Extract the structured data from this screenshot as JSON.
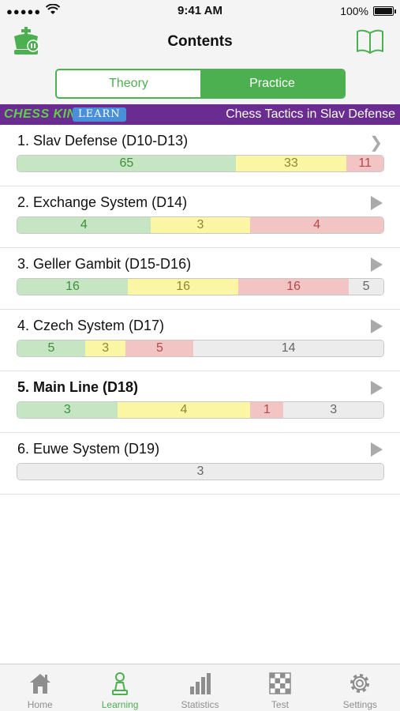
{
  "status_bar": {
    "signal": "●●●●●",
    "time": "9:41 AM",
    "battery": "100%"
  },
  "nav": {
    "title": "Contents"
  },
  "segments": {
    "theory": "Theory",
    "practice": "Practice"
  },
  "banner": {
    "brand": "CHESS KING",
    "badge": "LEARN",
    "course": "Chess Tactics in Slav Defense"
  },
  "chapters": [
    {
      "title": "1. Slav Defense (D10-D13)",
      "values": [
        65,
        33,
        11,
        0
      ]
    },
    {
      "title": "2. Exchange System (D14)",
      "values": [
        4,
        3,
        4,
        0
      ]
    },
    {
      "title": "3. Geller Gambit (D15-D16)",
      "values": [
        16,
        16,
        16,
        5
      ]
    },
    {
      "title": "4. Czech System (D17)",
      "values": [
        5,
        3,
        5,
        14
      ]
    },
    {
      "title": "5. Main Line (D18)",
      "values": [
        3,
        4,
        1,
        3
      ]
    },
    {
      "title": "6. Euwe System (D19)",
      "values": [
        0,
        0,
        0,
        3
      ]
    }
  ],
  "colors": {
    "accent": "#4caf50",
    "banner": "#6b2c91",
    "correct": "#c6e6c3",
    "partial": "#fbf6a4",
    "wrong": "#f2c4c4",
    "unsolved": "#ececec"
  },
  "tabs": [
    {
      "label": "Home",
      "icon": "home-icon"
    },
    {
      "label": "Learning",
      "icon": "pawn-icon"
    },
    {
      "label": "Statistics",
      "icon": "bar-chart-icon"
    },
    {
      "label": "Test",
      "icon": "chessboard-icon"
    },
    {
      "label": "Settings",
      "icon": "gear-icon"
    }
  ]
}
